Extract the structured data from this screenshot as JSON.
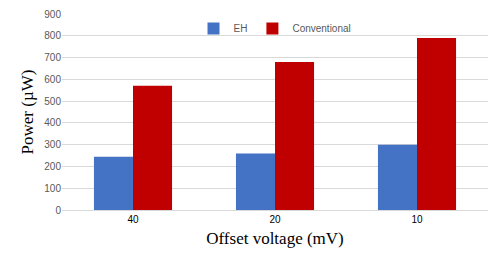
{
  "chart_data": {
    "type": "bar",
    "x_label": "Offset voltage (mV)",
    "y_label": "Power (µW)",
    "categories": [
      "40",
      "20",
      "10"
    ],
    "series": [
      {
        "name": "EH",
        "color": "#4472c4",
        "values": [
          245,
          260,
          300
        ]
      },
      {
        "name": "Conventional",
        "color": "#c00000",
        "values": [
          570,
          680,
          790
        ]
      }
    ],
    "ylim": [
      0,
      900
    ],
    "yticks": [
      0,
      100,
      200,
      300,
      400,
      500,
      600,
      700,
      800,
      900
    ],
    "grid": true,
    "legend": "top"
  }
}
